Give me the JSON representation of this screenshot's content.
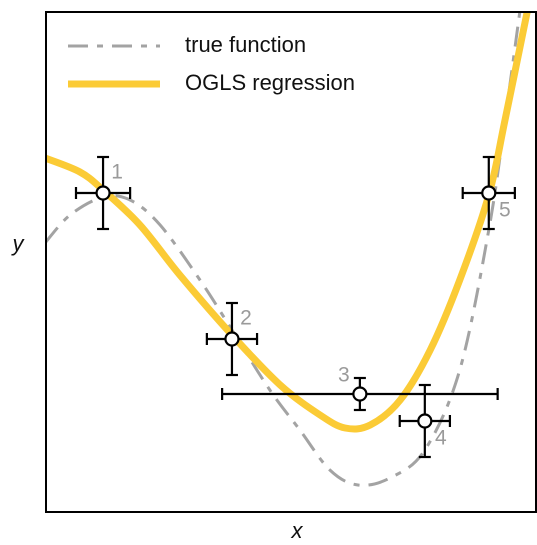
{
  "chart_data": {
    "type": "line",
    "xlabel": "x",
    "ylabel": "y",
    "xlim": [
      0,
      10
    ],
    "ylim": [
      0,
      10
    ],
    "legend": "upper left",
    "series": [
      {
        "name": "true function",
        "color": "#a3a3a3",
        "style": "dashed",
        "x": [
          0,
          0.51,
          1.18,
          1.73,
          2.34,
          3.15,
          3.8,
          4.57,
          5.18,
          5.79,
          6.36,
          7.01,
          7.72,
          8.43,
          9.02,
          9.35,
          9.65
        ],
        "values": [
          5.38,
          5.94,
          6.3,
          6.24,
          5.74,
          4.64,
          3.64,
          2.44,
          1.64,
          0.84,
          0.54,
          0.68,
          1.24,
          2.84,
          5.64,
          7.84,
          10
        ]
      },
      {
        "name": "OGLS regression",
        "color": "#fbcb36",
        "style": "solid",
        "x": [
          0,
          0.71,
          1.18,
          1.93,
          2.74,
          3.8,
          4.78,
          5.59,
          6.1,
          6.61,
          7.22,
          7.83,
          8.43,
          9.02,
          9.35,
          9.8
        ],
        "values": [
          7.08,
          6.8,
          6.44,
          5.74,
          4.74,
          3.54,
          2.54,
          1.94,
          1.68,
          1.74,
          2.24,
          3.24,
          4.64,
          6.34,
          7.84,
          10
        ]
      }
    ],
    "points": {
      "labels": [
        "1",
        "2",
        "3",
        "4",
        "5"
      ],
      "x": [
        1.18,
        3.8,
        6.4,
        7.72,
        9.02
      ],
      "y": [
        6.38,
        3.46,
        2.36,
        1.82,
        6.38
      ],
      "xerr": [
        0.55,
        0.51,
        2.8,
        0.51,
        0.53
      ],
      "yerr": [
        0.72,
        0.72,
        0.32,
        0.72,
        0.72
      ]
    }
  }
}
